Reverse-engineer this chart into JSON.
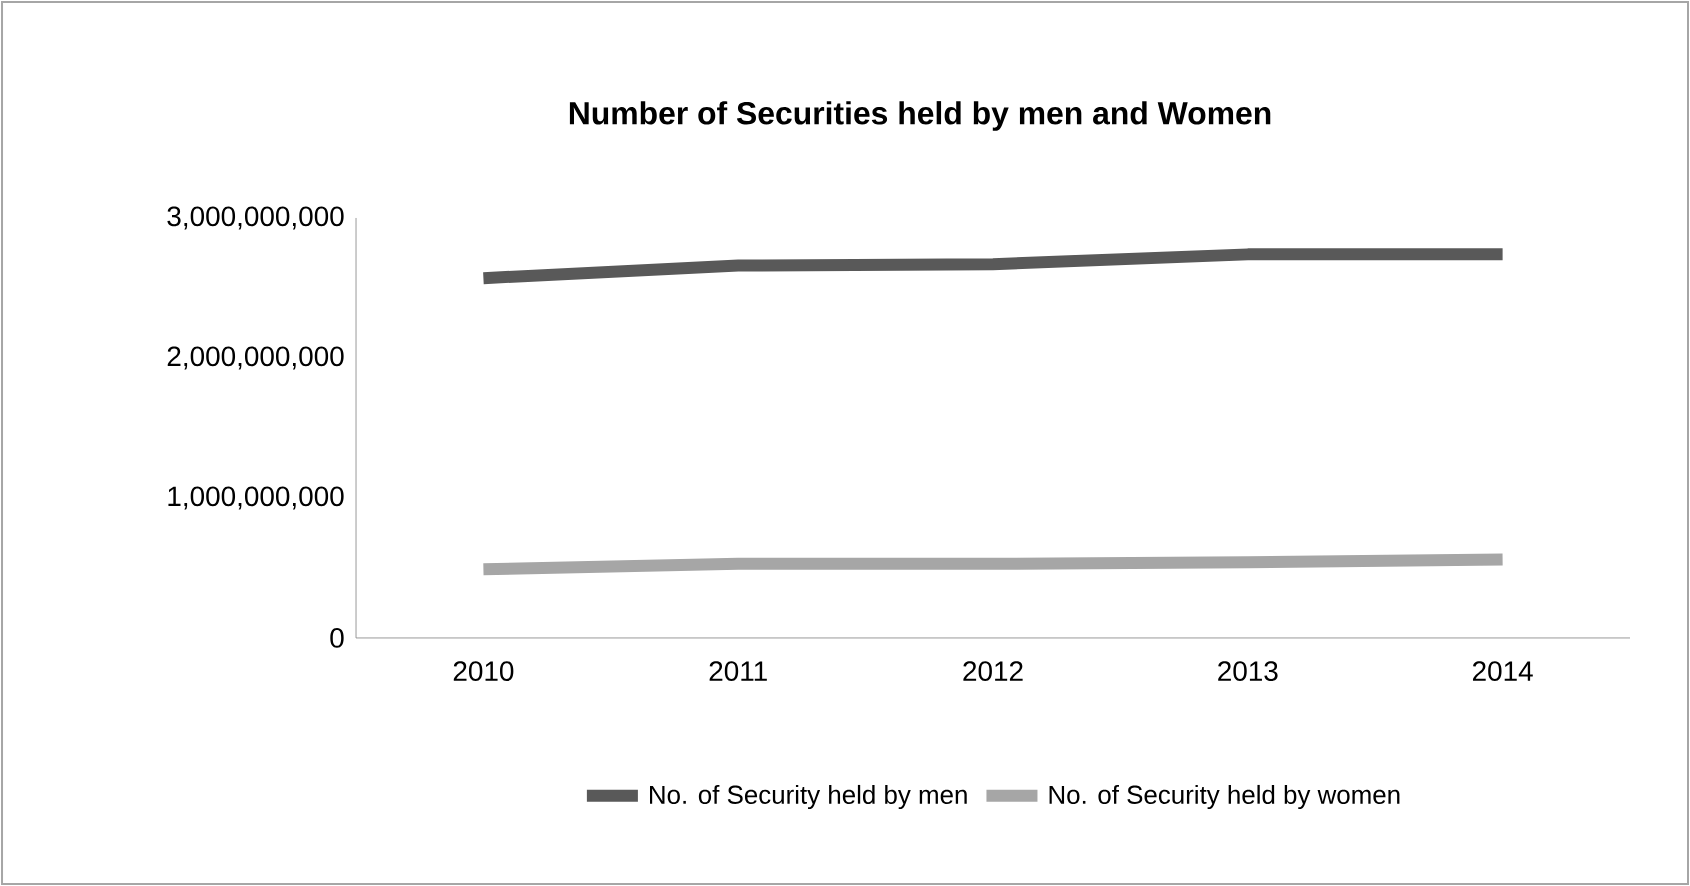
{
  "chart_data": {
    "type": "line",
    "title": "Number of Securities held by men and Women",
    "categories": [
      "2010",
      "2011",
      "2012",
      "2013",
      "2014"
    ],
    "series": [
      {
        "name": "No. of Security held by men",
        "color": "#595959",
        "values": [
          2570000000,
          2660000000,
          2670000000,
          2740000000,
          2740000000
        ]
      },
      {
        "name": "No. of Security held by women",
        "color": "#a6a6a6",
        "values": [
          490000000,
          530000000,
          530000000,
          540000000,
          560000000
        ]
      }
    ],
    "ylim": [
      0,
      3000000000
    ],
    "yticks": [
      0,
      {
        "value": 1000000000,
        "label": "1,000,000,000"
      },
      {
        "value": 2000000000,
        "label": "2,000,000,000"
      },
      {
        "value": 3000000000,
        "label": "3,000,000,000"
      }
    ],
    "grid": false,
    "legend": "bottom",
    "marker": "none",
    "line_style": "solid"
  }
}
